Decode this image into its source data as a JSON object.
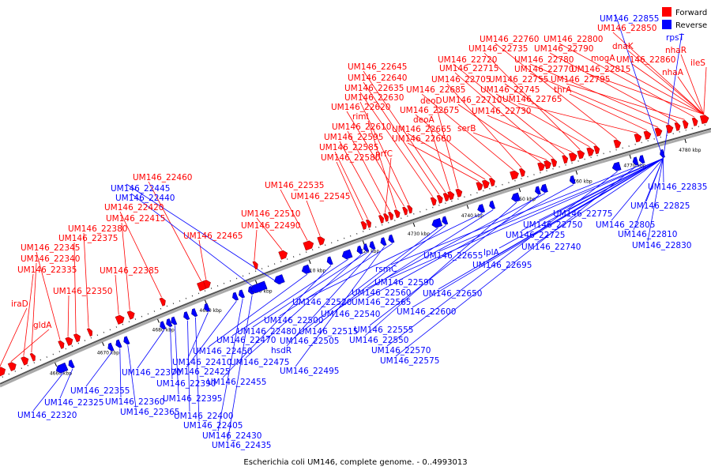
{
  "caption": "Escherichia coli UM146, complete genome. - 0..4993013",
  "legend": {
    "forward_label": "Forward",
    "reverse_label": "Reverse",
    "forward_color": "#ff0000",
    "reverse_color": "#0000ff"
  },
  "ticks": [
    "4660 kbp",
    "4670 kbp",
    "4680 kbp",
    "4690 kbp",
    "4700 kbp",
    "4710 kbp",
    "4720 kbp",
    "4730 kbp",
    "4740 kbp",
    "4750 kbp",
    "4760 kbp",
    "4770 kbp",
    "4780 kbp"
  ],
  "forward_labels": [
    "iraD",
    "gldA",
    "UM146_22335",
    "UM146_22340",
    "UM146_22345",
    "UM146_22350",
    "UM146_22375",
    "UM146_22380",
    "UM146_22385",
    "UM146_22415",
    "UM146_22420",
    "UM146_22460",
    "UM146_22465",
    "UM146_22490",
    "UM146_22510",
    "UM146_22535",
    "UM146_22545",
    "UM146_22580",
    "UM146_22585",
    "UM146_22595",
    "prfC",
    "UM146_22610",
    "rimI",
    "UM146_22620",
    "UM146_22630",
    "UM146_22635",
    "UM146_22640",
    "UM146_22645",
    "deoA",
    "deoD",
    "UM146_22660",
    "UM146_22665",
    "UM146_22675",
    "UM146_22685",
    "UM146_22705",
    "UM146_22710",
    "serB",
    "UM146_22715",
    "UM146_22720",
    "UM146_22730",
    "UM146_22735",
    "UM146_22745",
    "UM146_22755",
    "UM146_22760",
    "UM146_22765",
    "thrA",
    "UM146_22770",
    "UM146_22780",
    "UM146_22790",
    "UM146_22795",
    "UM146_22800",
    "mogA",
    "dnaK",
    "UM146_22815",
    "UM146_22850",
    "UM146_22860",
    "nhaA",
    "nhaR",
    "ileS"
  ],
  "reverse_labels": [
    "UM146_22320",
    "UM146_22325",
    "UM146_22355",
    "UM146_22360",
    "UM146_22365",
    "UM146_22370",
    "UM146_22390",
    "UM146_22395",
    "UM146_22400",
    "UM146_22405",
    "UM146_22410",
    "UM146_22425",
    "UM146_22430",
    "UM146_22435",
    "UM146_22440",
    "UM146_22445",
    "UM146_22450",
    "UM146_22455",
    "UM146_22470",
    "UM146_22475",
    "UM146_22480",
    "hsdR",
    "UM146_22495",
    "UM146_22500",
    "UM146_22505",
    "UM146_22515",
    "UM146_22520",
    "UM146_22540",
    "UM146_22550",
    "UM146_22555",
    "UM146_22560",
    "UM146_22565",
    "UM146_22570",
    "UM146_22575",
    "rsmC",
    "UM146_22590",
    "UM146_22600",
    "UM146_22650",
    "UM146_22655",
    "lplA",
    "UM146_22695",
    "UM146_22725",
    "UM146_22740",
    "UM146_22750",
    "UM146_22775",
    "UM146_22805",
    "UM146_22810",
    "UM146_22825",
    "UM146_22830",
    "UM146_22835",
    "UM146_22855",
    "rpsT"
  ]
}
